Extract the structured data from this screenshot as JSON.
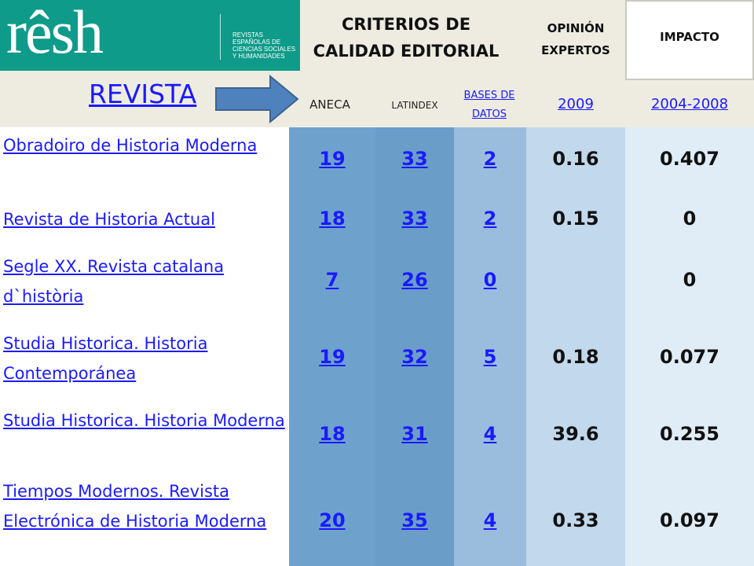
{
  "logo": {
    "word": "rêsh",
    "tagline": "REVISTAS ESPAÑOLAS DE CIENCIAS SOCIALES Y HUMANIDADES"
  },
  "header": {
    "criteria_title": "CRITERIOS DE CALIDAD EDITORIAL",
    "opinion_title": "OPINIÓN EXPERTOS",
    "impact_title": "IMPACTO"
  },
  "columns": {
    "revista": "REVISTA",
    "aneca": "ANECA",
    "latindex": "LATINDEX",
    "bases": "BASES DE DATOS",
    "opinion_year": "2009",
    "impact_years": "2004-2008"
  },
  "rows": [
    {
      "journal": "Obradoiro de Historia Moderna",
      "aneca": "19",
      "latindex": "33",
      "bases": "2",
      "opinion": "0.16",
      "impact": "0.407"
    },
    {
      "journal": "Revista de Historia Actual",
      "aneca": "18",
      "latindex": "33",
      "bases": "2",
      "opinion": "0.15",
      "impact": "0"
    },
    {
      "journal": "Segle XX. Revista catalana d`història",
      "aneca": "7",
      "latindex": "26",
      "bases": "0",
      "opinion": "",
      "impact": "0"
    },
    {
      "journal": "Studia Historica. Historia Contemporánea",
      "aneca": "19",
      "latindex": "32",
      "bases": "5",
      "opinion": "0.18",
      "impact": "0.077"
    },
    {
      "journal": "Studia Historica. Historia Moderna",
      "aneca": "18",
      "latindex": "31",
      "bases": "4",
      "opinion": "39.6",
      "impact": "0.255"
    },
    {
      "journal": "Tiempos Modernos. Revista Electrónica de Historia Moderna",
      "aneca": "20",
      "latindex": "35",
      "bases": "4",
      "opinion": "0.33",
      "impact": "0.097"
    }
  ],
  "colors": {
    "logo_bg": "#0f9b8a",
    "header_bg": "#eeece1",
    "link": "#1a1aff",
    "arrow": "#4f81bd"
  }
}
